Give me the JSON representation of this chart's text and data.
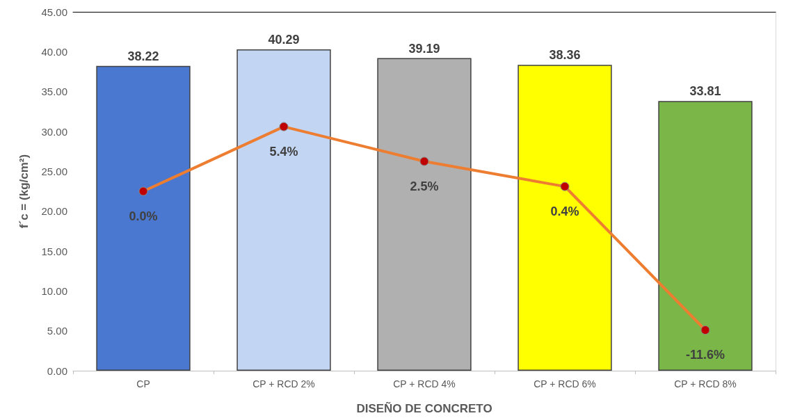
{
  "chart_data": {
    "type": "bar",
    "xlabel": "DISEÑO DE CONCRETO",
    "ylabel": "f´c = (kg/cm²)",
    "categories": [
      "CP",
      "CP + RCD 2%",
      "CP + RCD 4%",
      "CP + RCD 6%",
      "CP + RCD 8%"
    ],
    "series": [
      {
        "type": "bar",
        "colors": [
          "#4a78d0",
          "#c2d5f3",
          "#b0b0b0",
          "#ffff00",
          "#7ab648"
        ],
        "values": [
          38.22,
          40.29,
          39.19,
          38.36,
          33.81
        ],
        "data_labels": true
      },
      {
        "type": "line",
        "axis": "y2",
        "color": "#ed7d31",
        "colors": [
          "#c00000",
          "#c00000",
          "#c00000",
          "#c00000",
          "#c00000"
        ],
        "marker": "circle",
        "values": [
          0.0,
          5.4,
          2.5,
          0.4,
          -11.6
        ],
        "value_labels": [
          "0.0%",
          "5.4%",
          "2.5%",
          "0.4%",
          "-11.6%"
        ]
      }
    ],
    "ylim": [
      0,
      45
    ],
    "yticks": [
      {
        "value": 0,
        "label": "0.00"
      },
      {
        "value": 5,
        "label": "5.00"
      },
      {
        "value": 10,
        "label": "10.00"
      },
      {
        "value": 15,
        "label": "15.00"
      },
      {
        "value": 20,
        "label": "20.00"
      },
      {
        "value": 25,
        "label": "25.00"
      },
      {
        "value": 30,
        "label": "30.00"
      },
      {
        "value": 35,
        "label": "35.00"
      },
      {
        "value": 40,
        "label": "40.00"
      },
      {
        "value": 45,
        "label": "45.00"
      }
    ],
    "y2lim": [
      -15,
      15
    ],
    "grid": false
  }
}
